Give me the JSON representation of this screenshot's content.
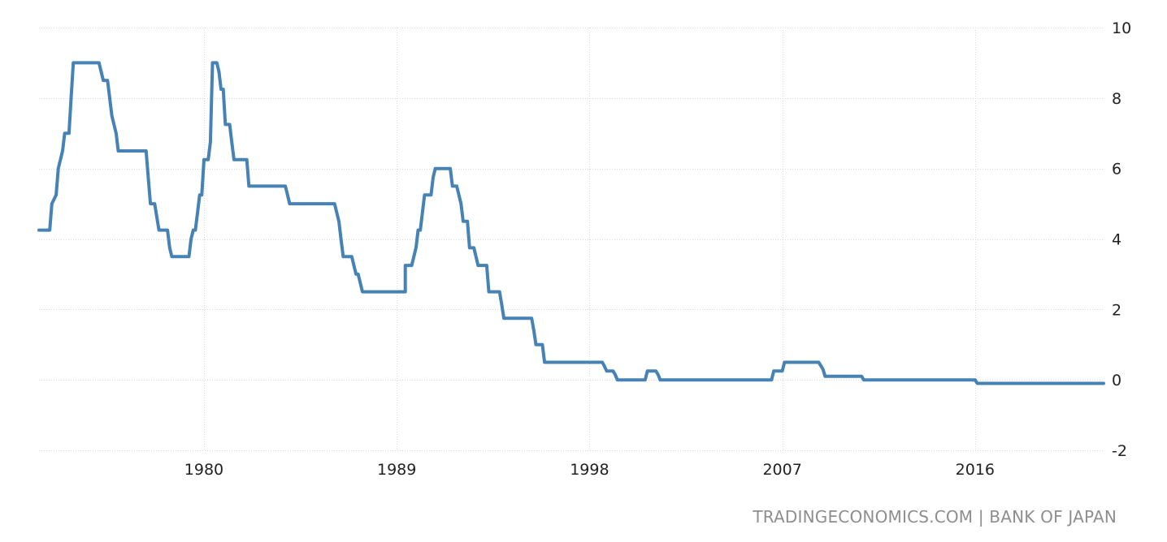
{
  "source_credit": "TRADINGECONOMICS.COM | BANK OF JAPAN",
  "colors": {
    "line": "#4682b4",
    "grid": "#d9d9d9",
    "tick_text": "#222222",
    "credit_text": "#8e8e8e"
  },
  "chart_data": {
    "type": "line",
    "title": "",
    "xlabel": "",
    "ylabel": "",
    "x_ticks": [
      1980,
      1989,
      1998,
      2007,
      2016
    ],
    "y_ticks": [
      10,
      8,
      6,
      4,
      2,
      0,
      -2
    ],
    "xlim": [
      1972.3,
      2022.0
    ],
    "ylim": [
      -2,
      10
    ],
    "grid": true,
    "legend": "none",
    "series": [
      {
        "values": [
          [
            1972.3,
            4.25
          ],
          [
            1972.8,
            4.25
          ],
          [
            1972.9,
            5.0
          ],
          [
            1973.1,
            5.25
          ],
          [
            1973.2,
            6.0
          ],
          [
            1973.4,
            6.5
          ],
          [
            1973.5,
            7.0
          ],
          [
            1973.7,
            7.0
          ],
          [
            1973.8,
            8.0
          ],
          [
            1973.9,
            9.0
          ],
          [
            1975.1,
            9.0
          ],
          [
            1975.3,
            8.5
          ],
          [
            1975.5,
            8.5
          ],
          [
            1975.6,
            8.0
          ],
          [
            1975.7,
            7.5
          ],
          [
            1975.9,
            7.0
          ],
          [
            1976.0,
            6.5
          ],
          [
            1977.3,
            6.5
          ],
          [
            1977.4,
            5.75
          ],
          [
            1977.5,
            5.0
          ],
          [
            1977.7,
            5.0
          ],
          [
            1977.9,
            4.25
          ],
          [
            1978.3,
            4.25
          ],
          [
            1978.4,
            3.75
          ],
          [
            1978.5,
            3.5
          ],
          [
            1979.3,
            3.5
          ],
          [
            1979.4,
            4.0
          ],
          [
            1979.5,
            4.25
          ],
          [
            1979.6,
            4.25
          ],
          [
            1979.7,
            4.75
          ],
          [
            1979.8,
            5.25
          ],
          [
            1979.9,
            5.25
          ],
          [
            1980.0,
            6.25
          ],
          [
            1980.2,
            6.25
          ],
          [
            1980.3,
            6.75
          ],
          [
            1980.4,
            9.0
          ],
          [
            1980.6,
            9.0
          ],
          [
            1980.7,
            8.75
          ],
          [
            1980.8,
            8.25
          ],
          [
            1980.9,
            8.25
          ],
          [
            1981.0,
            7.25
          ],
          [
            1981.2,
            7.25
          ],
          [
            1981.3,
            6.75
          ],
          [
            1981.4,
            6.25
          ],
          [
            1982.0,
            6.25
          ],
          [
            1982.1,
            5.5
          ],
          [
            1983.8,
            5.5
          ],
          [
            1983.9,
            5.25
          ],
          [
            1984.0,
            5.0
          ],
          [
            1986.1,
            5.0
          ],
          [
            1986.3,
            4.5
          ],
          [
            1986.4,
            4.0
          ],
          [
            1986.5,
            3.5
          ],
          [
            1986.9,
            3.5
          ],
          [
            1987.1,
            3.0
          ],
          [
            1987.2,
            3.0
          ],
          [
            1987.4,
            2.5
          ],
          [
            1989.4,
            2.5
          ],
          [
            1989.4,
            3.25
          ],
          [
            1989.7,
            3.25
          ],
          [
            1989.9,
            3.75
          ],
          [
            1990.0,
            4.25
          ],
          [
            1990.1,
            4.25
          ],
          [
            1990.3,
            5.25
          ],
          [
            1990.6,
            5.25
          ],
          [
            1990.7,
            5.75
          ],
          [
            1990.8,
            6.0
          ],
          [
            1991.5,
            6.0
          ],
          [
            1991.6,
            5.5
          ],
          [
            1991.8,
            5.5
          ],
          [
            1992.0,
            5.0
          ],
          [
            1992.1,
            4.5
          ],
          [
            1992.3,
            4.5
          ],
          [
            1992.4,
            3.75
          ],
          [
            1992.6,
            3.75
          ],
          [
            1992.8,
            3.25
          ],
          [
            1993.2,
            3.25
          ],
          [
            1993.3,
            2.5
          ],
          [
            1993.8,
            2.5
          ],
          [
            1993.9,
            2.15
          ],
          [
            1994.0,
            1.75
          ],
          [
            1995.3,
            1.75
          ],
          [
            1995.4,
            1.4
          ],
          [
            1995.5,
            1.0
          ],
          [
            1995.8,
            1.0
          ],
          [
            1995.9,
            0.5
          ],
          [
            1998.6,
            0.5
          ],
          [
            1998.7,
            0.38
          ],
          [
            1998.8,
            0.25
          ],
          [
            1999.1,
            0.25
          ],
          [
            1999.2,
            0.15
          ],
          [
            1999.3,
            0.0
          ],
          [
            2000.6,
            0.0
          ],
          [
            2000.7,
            0.25
          ],
          [
            2001.1,
            0.25
          ],
          [
            2001.2,
            0.15
          ],
          [
            2001.3,
            0.0
          ],
          [
            2006.5,
            0.0
          ],
          [
            2006.6,
            0.25
          ],
          [
            2007.0,
            0.25
          ],
          [
            2007.1,
            0.5
          ],
          [
            2008.7,
            0.5
          ],
          [
            2008.8,
            0.4
          ],
          [
            2008.9,
            0.3
          ],
          [
            2009.0,
            0.1
          ],
          [
            2010.7,
            0.1
          ],
          [
            2010.8,
            0.0
          ],
          [
            2016.0,
            0.0
          ],
          [
            2016.1,
            -0.1
          ],
          [
            2022.0,
            -0.1
          ]
        ]
      }
    ]
  }
}
